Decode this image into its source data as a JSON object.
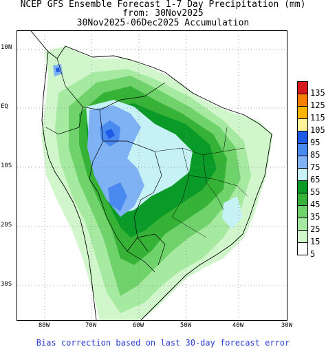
{
  "title": {
    "line1": "NCEP GFS Ensemble Forecast 1-7 Day Precipitation (mm)",
    "line2": "from: 30Nov2025",
    "line3": "30Nov2025-06Dec2025 Accumulation"
  },
  "lat_labels": [
    "10N",
    "EQ",
    "10S",
    "20S",
    "30S"
  ],
  "lon_labels": [
    "80W",
    "70W",
    "60W",
    "50W",
    "40W",
    "30W"
  ],
  "legend": {
    "levels": [
      "135",
      "125",
      "115",
      "105",
      "95",
      "85",
      "75",
      "65",
      "55",
      "45",
      "35",
      "25",
      "15",
      "5"
    ],
    "colors": [
      "#d7191c",
      "#fe7e00",
      "#ffb400",
      "#fff299",
      "#1e5be6",
      "#4a89ef",
      "#7fb1f5",
      "#c7f2f5",
      "#099a28",
      "#36b336",
      "#6fd26b",
      "#a6e9a0",
      "#d1f6cc",
      "#ffffff"
    ]
  },
  "footer": "Bias correction based on last 30-day forecast error"
}
